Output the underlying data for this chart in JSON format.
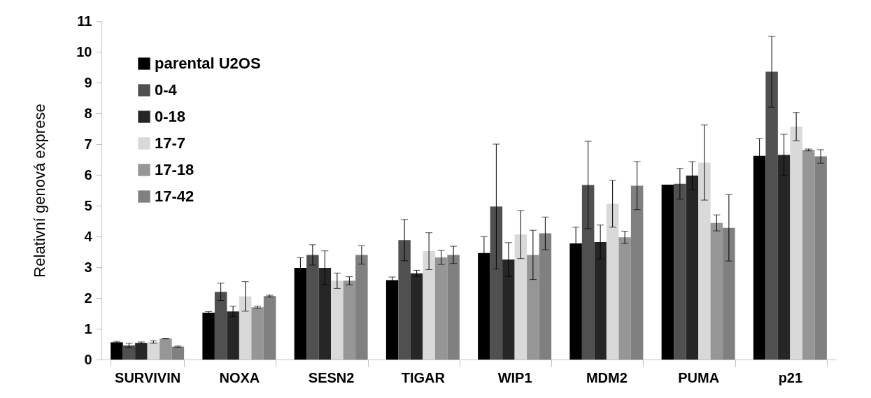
{
  "chart_data": {
    "type": "bar",
    "ylabel": "Relativní genová exprese",
    "categories": [
      "SURVIVIN",
      "NOXA",
      "SESN2",
      "TIGAR",
      "WIP1",
      "MDM2",
      "PUMA",
      "p21"
    ],
    "ylim": [
      0,
      11
    ],
    "yticks": [
      0,
      1,
      2,
      3,
      4,
      5,
      6,
      7,
      8,
      9,
      10,
      11
    ],
    "grid": false,
    "legend": "top left",
    "series": [
      {
        "name": "parental U2OS",
        "color": "#000000",
        "values": [
          0.56,
          1.52,
          2.98,
          2.58,
          3.46,
          3.77,
          5.68,
          6.62
        ],
        "errors": [
          0.03,
          0.04,
          0.33,
          0.1,
          0.53,
          0.53,
          null,
          0.56
        ]
      },
      {
        "name": "0-4",
        "color": "#505050",
        "values": [
          0.46,
          2.2,
          3.4,
          3.88,
          4.97,
          5.67,
          5.71,
          9.35
        ],
        "errors": [
          0.07,
          0.28,
          0.33,
          0.67,
          2.03,
          1.42,
          0.5,
          1.15
        ]
      },
      {
        "name": "0-18",
        "color": "#262626",
        "values": [
          0.54,
          1.56,
          2.98,
          2.8,
          3.25,
          3.82,
          5.98,
          6.65
        ],
        "errors": [
          0.03,
          0.17,
          0.55,
          0.1,
          0.55,
          0.55,
          0.45,
          0.67
        ]
      },
      {
        "name": "17-7",
        "color": "#d9d9d9",
        "values": [
          0.57,
          2.05,
          2.56,
          3.52,
          4.06,
          5.06,
          6.4,
          7.57
        ],
        "errors": [
          0.04,
          0.48,
          0.25,
          0.6,
          0.78,
          0.76,
          1.22,
          0.46
        ]
      },
      {
        "name": "17-18",
        "color": "#969696",
        "values": [
          0.68,
          1.7,
          2.56,
          3.32,
          3.4,
          3.97,
          4.44,
          6.81
        ],
        "errors": [
          0.01,
          0.03,
          0.13,
          0.23,
          0.8,
          0.2,
          0.26,
          0.03
        ]
      },
      {
        "name": "17-42",
        "color": "#808080",
        "values": [
          0.42,
          2.06,
          3.4,
          3.4,
          4.1,
          5.65,
          4.28,
          6.6
        ],
        "errors": [
          0.02,
          0.03,
          0.3,
          0.28,
          0.53,
          0.78,
          1.08,
          0.22
        ]
      }
    ]
  }
}
